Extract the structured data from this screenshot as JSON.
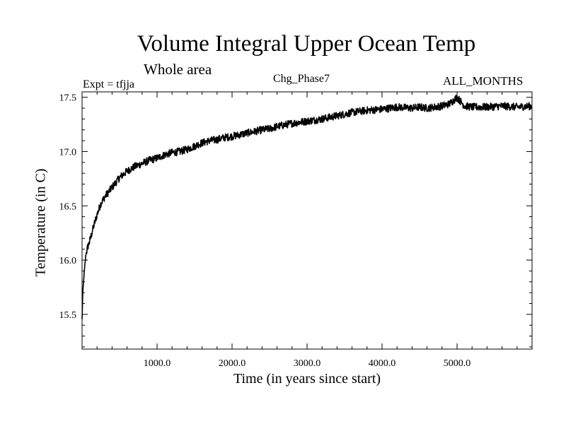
{
  "header": {
    "title": "Volume Integral Upper Ocean Temp",
    "subtitle": "Whole area",
    "expt": "Expt = tfjja",
    "phase": "Chg_Phase7",
    "months": "ALL_MONTHS"
  },
  "chart_data": {
    "type": "line",
    "title": "Volume Integral Upper Ocean Temp",
    "xlabel": "Time (in years since start)",
    "ylabel": "Temperature (in C)",
    "xlim": [
      0,
      6000
    ],
    "ylim": [
      15.18,
      17.55
    ],
    "x_ticks": [
      1000,
      2000,
      3000,
      4000,
      5000
    ],
    "x_tick_labels": [
      "1000.0",
      "2000.0",
      "3000.0",
      "4000.0",
      "5000.0"
    ],
    "y_ticks": [
      15.5,
      16.0,
      16.5,
      17.0,
      17.5
    ],
    "y_tick_labels": [
      "15.5",
      "16.0",
      "16.5",
      "17.0",
      "17.5"
    ],
    "grid": false,
    "series": [
      {
        "color": "#000000",
        "x": [
          0,
          10,
          25,
          50,
          75,
          100,
          150,
          200,
          250,
          300,
          400,
          500,
          600,
          700,
          800,
          900,
          1000,
          1100,
          1200,
          1300,
          1400,
          1500,
          1600,
          1700,
          1800,
          1900,
          2000,
          2200,
          2400,
          2500,
          2600,
          2800,
          3000,
          3200,
          3400,
          3600,
          3800,
          4000,
          4200,
          4400,
          4500,
          4600,
          4800,
          4900,
          5000,
          5050,
          5100,
          5200,
          5400,
          5600,
          5800,
          6000
        ],
        "y": [
          15.45,
          15.7,
          15.85,
          16.05,
          16.12,
          16.17,
          16.3,
          16.42,
          16.52,
          16.58,
          16.67,
          16.76,
          16.82,
          16.86,
          16.89,
          16.92,
          16.94,
          16.97,
          16.99,
          17.0,
          17.02,
          17.05,
          17.08,
          17.1,
          17.11,
          17.13,
          17.14,
          17.17,
          17.2,
          17.21,
          17.23,
          17.26,
          17.28,
          17.3,
          17.33,
          17.36,
          17.38,
          17.39,
          17.41,
          17.4,
          17.41,
          17.4,
          17.42,
          17.44,
          17.5,
          17.46,
          17.42,
          17.41,
          17.41,
          17.42,
          17.41,
          17.42
        ]
      }
    ]
  }
}
